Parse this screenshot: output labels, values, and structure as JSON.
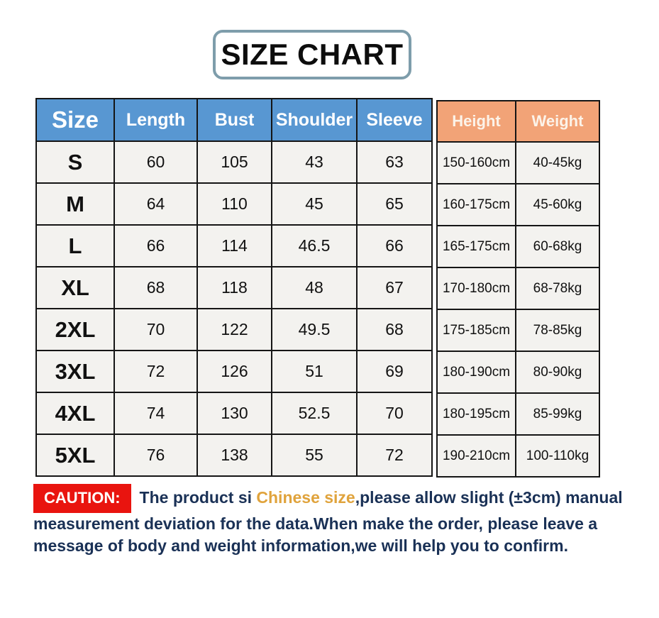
{
  "title": "SIZE CHART",
  "size_table": {
    "headers": [
      "Size",
      "Length",
      "Bust",
      "Shoulder",
      "Sleeve"
    ],
    "rows": [
      [
        "S",
        "60",
        "105",
        "43",
        "63"
      ],
      [
        "M",
        "64",
        "110",
        "45",
        "65"
      ],
      [
        "L",
        "66",
        "114",
        "46.5",
        "66"
      ],
      [
        "XL",
        "68",
        "118",
        "48",
        "67"
      ],
      [
        "2XL",
        "70",
        "122",
        "49.5",
        "68"
      ],
      [
        "3XL",
        "72",
        "126",
        "51",
        "69"
      ],
      [
        "4XL",
        "74",
        "130",
        "52.5",
        "70"
      ],
      [
        "5XL",
        "76",
        "138",
        "55",
        "72"
      ]
    ]
  },
  "body_table": {
    "headers": [
      "Height",
      "Weight"
    ],
    "rows": [
      [
        "150-160cm",
        "40-45kg"
      ],
      [
        "160-175cm",
        "45-60kg"
      ],
      [
        "165-175cm",
        "60-68kg"
      ],
      [
        "170-180cm",
        "68-78kg"
      ],
      [
        "175-185cm",
        "78-85kg"
      ],
      [
        "180-190cm",
        "80-90kg"
      ],
      [
        "180-195cm",
        "85-99kg"
      ],
      [
        "190-210cm",
        "100-110kg"
      ]
    ]
  },
  "caution": {
    "label": "CAUTION:",
    "text_before": "The product si ",
    "highlight": "Chinese size",
    "text_after": ",please allow slight (±3cm) manual measurement deviation for the data.When make the order, please leave a message of body and weight information,we will help you to confirm."
  },
  "colors": {
    "header_blue": "#5897d2",
    "header_orange": "#f2a377",
    "caution_red": "#e9140f",
    "caution_text_navy": "#1a3156",
    "highlight_gold": "#e0a33c",
    "title_border": "#7e9dab",
    "cell_background": "#f3f2ef",
    "table_border": "#151515"
  },
  "chart_data": {
    "type": "table",
    "title": "SIZE CHART",
    "columns": [
      "Size",
      "Length",
      "Bust",
      "Shoulder",
      "Sleeve",
      "Height",
      "Weight"
    ],
    "rows": [
      [
        "S",
        "60",
        "105",
        "43",
        "63",
        "150-160cm",
        "40-45kg"
      ],
      [
        "M",
        "64",
        "110",
        "45",
        "65",
        "160-175cm",
        "45-60kg"
      ],
      [
        "L",
        "66",
        "114",
        "46.5",
        "66",
        "165-175cm",
        "60-68kg"
      ],
      [
        "XL",
        "68",
        "118",
        "48",
        "67",
        "170-180cm",
        "68-78kg"
      ],
      [
        "2XL",
        "70",
        "122",
        "49.5",
        "68",
        "175-185cm",
        "78-85kg"
      ],
      [
        "3XL",
        "72",
        "126",
        "51",
        "69",
        "180-190cm",
        "80-90kg"
      ],
      [
        "4XL",
        "74",
        "130",
        "52.5",
        "70",
        "180-195cm",
        "85-99kg"
      ],
      [
        "5XL",
        "76",
        "138",
        "55",
        "72",
        "190-210cm",
        "100-110kg"
      ]
    ],
    "layout_hints": {
      "header_style": "blue for garment measurements, orange for body height/weight",
      "note": "caution paragraph below table"
    }
  }
}
